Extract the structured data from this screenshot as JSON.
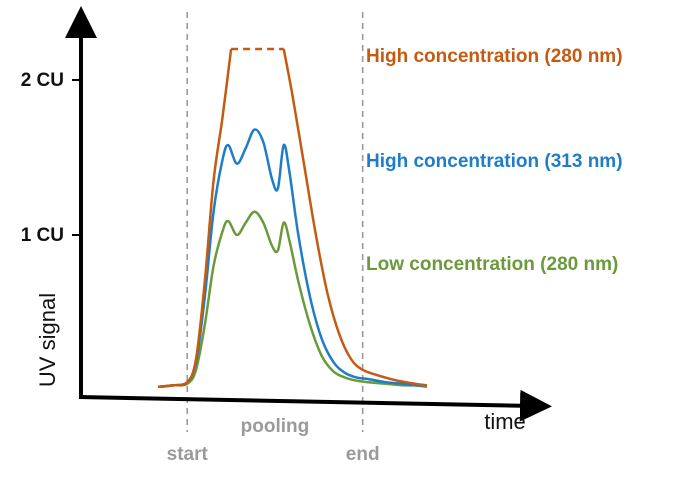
{
  "chart_data": {
    "type": "line",
    "title": "",
    "xlabel": "time",
    "ylabel": "UV signal",
    "ylim": [
      0,
      2.45
    ],
    "xlim": [
      0,
      100
    ],
    "grid": false,
    "legend_placement": "right",
    "y_ticks": [
      {
        "value": 2,
        "label": "2 CU"
      },
      {
        "value": 1,
        "label": "1 CU"
      }
    ],
    "markers": [
      {
        "x": 10,
        "label": "start"
      },
      {
        "x": 70,
        "label": "end"
      }
    ],
    "region_label": "pooling",
    "saturation": {
      "series_index": 0,
      "y": 2.2,
      "x_from": 25,
      "x_to": 43
    },
    "series": [
      {
        "name": "High concentration (280 nm)",
        "color": "#C55A11",
        "x": [
          0,
          5,
          10,
          13,
          16,
          19,
          22,
          25,
          28,
          34,
          40,
          43,
          46,
          50,
          54,
          58,
          62,
          66,
          70,
          76,
          82,
          88,
          92
        ],
        "y": [
          0.02,
          0.03,
          0.05,
          0.2,
          0.7,
          1.35,
          1.75,
          2.2,
          2.2,
          2.2,
          2.2,
          2.2,
          1.9,
          1.45,
          1.0,
          0.62,
          0.36,
          0.2,
          0.13,
          0.09,
          0.06,
          0.04,
          0.03
        ]
      },
      {
        "name": "High concentration (313 nm)",
        "color": "#1F7DC8",
        "x": [
          0,
          5,
          10,
          13,
          16,
          19,
          22,
          24,
          27,
          30,
          33,
          36,
          39,
          41,
          43,
          45,
          48,
          52,
          56,
          60,
          64,
          68,
          72,
          78,
          84,
          88,
          92
        ],
        "y": [
          0.02,
          0.03,
          0.05,
          0.18,
          0.6,
          1.15,
          1.48,
          1.58,
          1.46,
          1.56,
          1.68,
          1.6,
          1.36,
          1.3,
          1.58,
          1.4,
          1.0,
          0.6,
          0.33,
          0.18,
          0.11,
          0.08,
          0.07,
          0.05,
          0.04,
          0.03,
          0.03
        ]
      },
      {
        "name": "Low concentration (280 nm)",
        "color": "#6A9A3B",
        "x": [
          0,
          5,
          10,
          13,
          16,
          19,
          22,
          24,
          27,
          30,
          33,
          36,
          39,
          41,
          43,
          45,
          48,
          52,
          56,
          60,
          64,
          68,
          72,
          78,
          84,
          88,
          92
        ],
        "y": [
          0.02,
          0.03,
          0.04,
          0.13,
          0.42,
          0.8,
          1.02,
          1.09,
          1.0,
          1.08,
          1.15,
          1.08,
          0.93,
          0.9,
          1.08,
          0.96,
          0.7,
          0.42,
          0.22,
          0.12,
          0.08,
          0.06,
          0.05,
          0.04,
          0.03,
          0.03,
          0.02
        ]
      }
    ]
  }
}
